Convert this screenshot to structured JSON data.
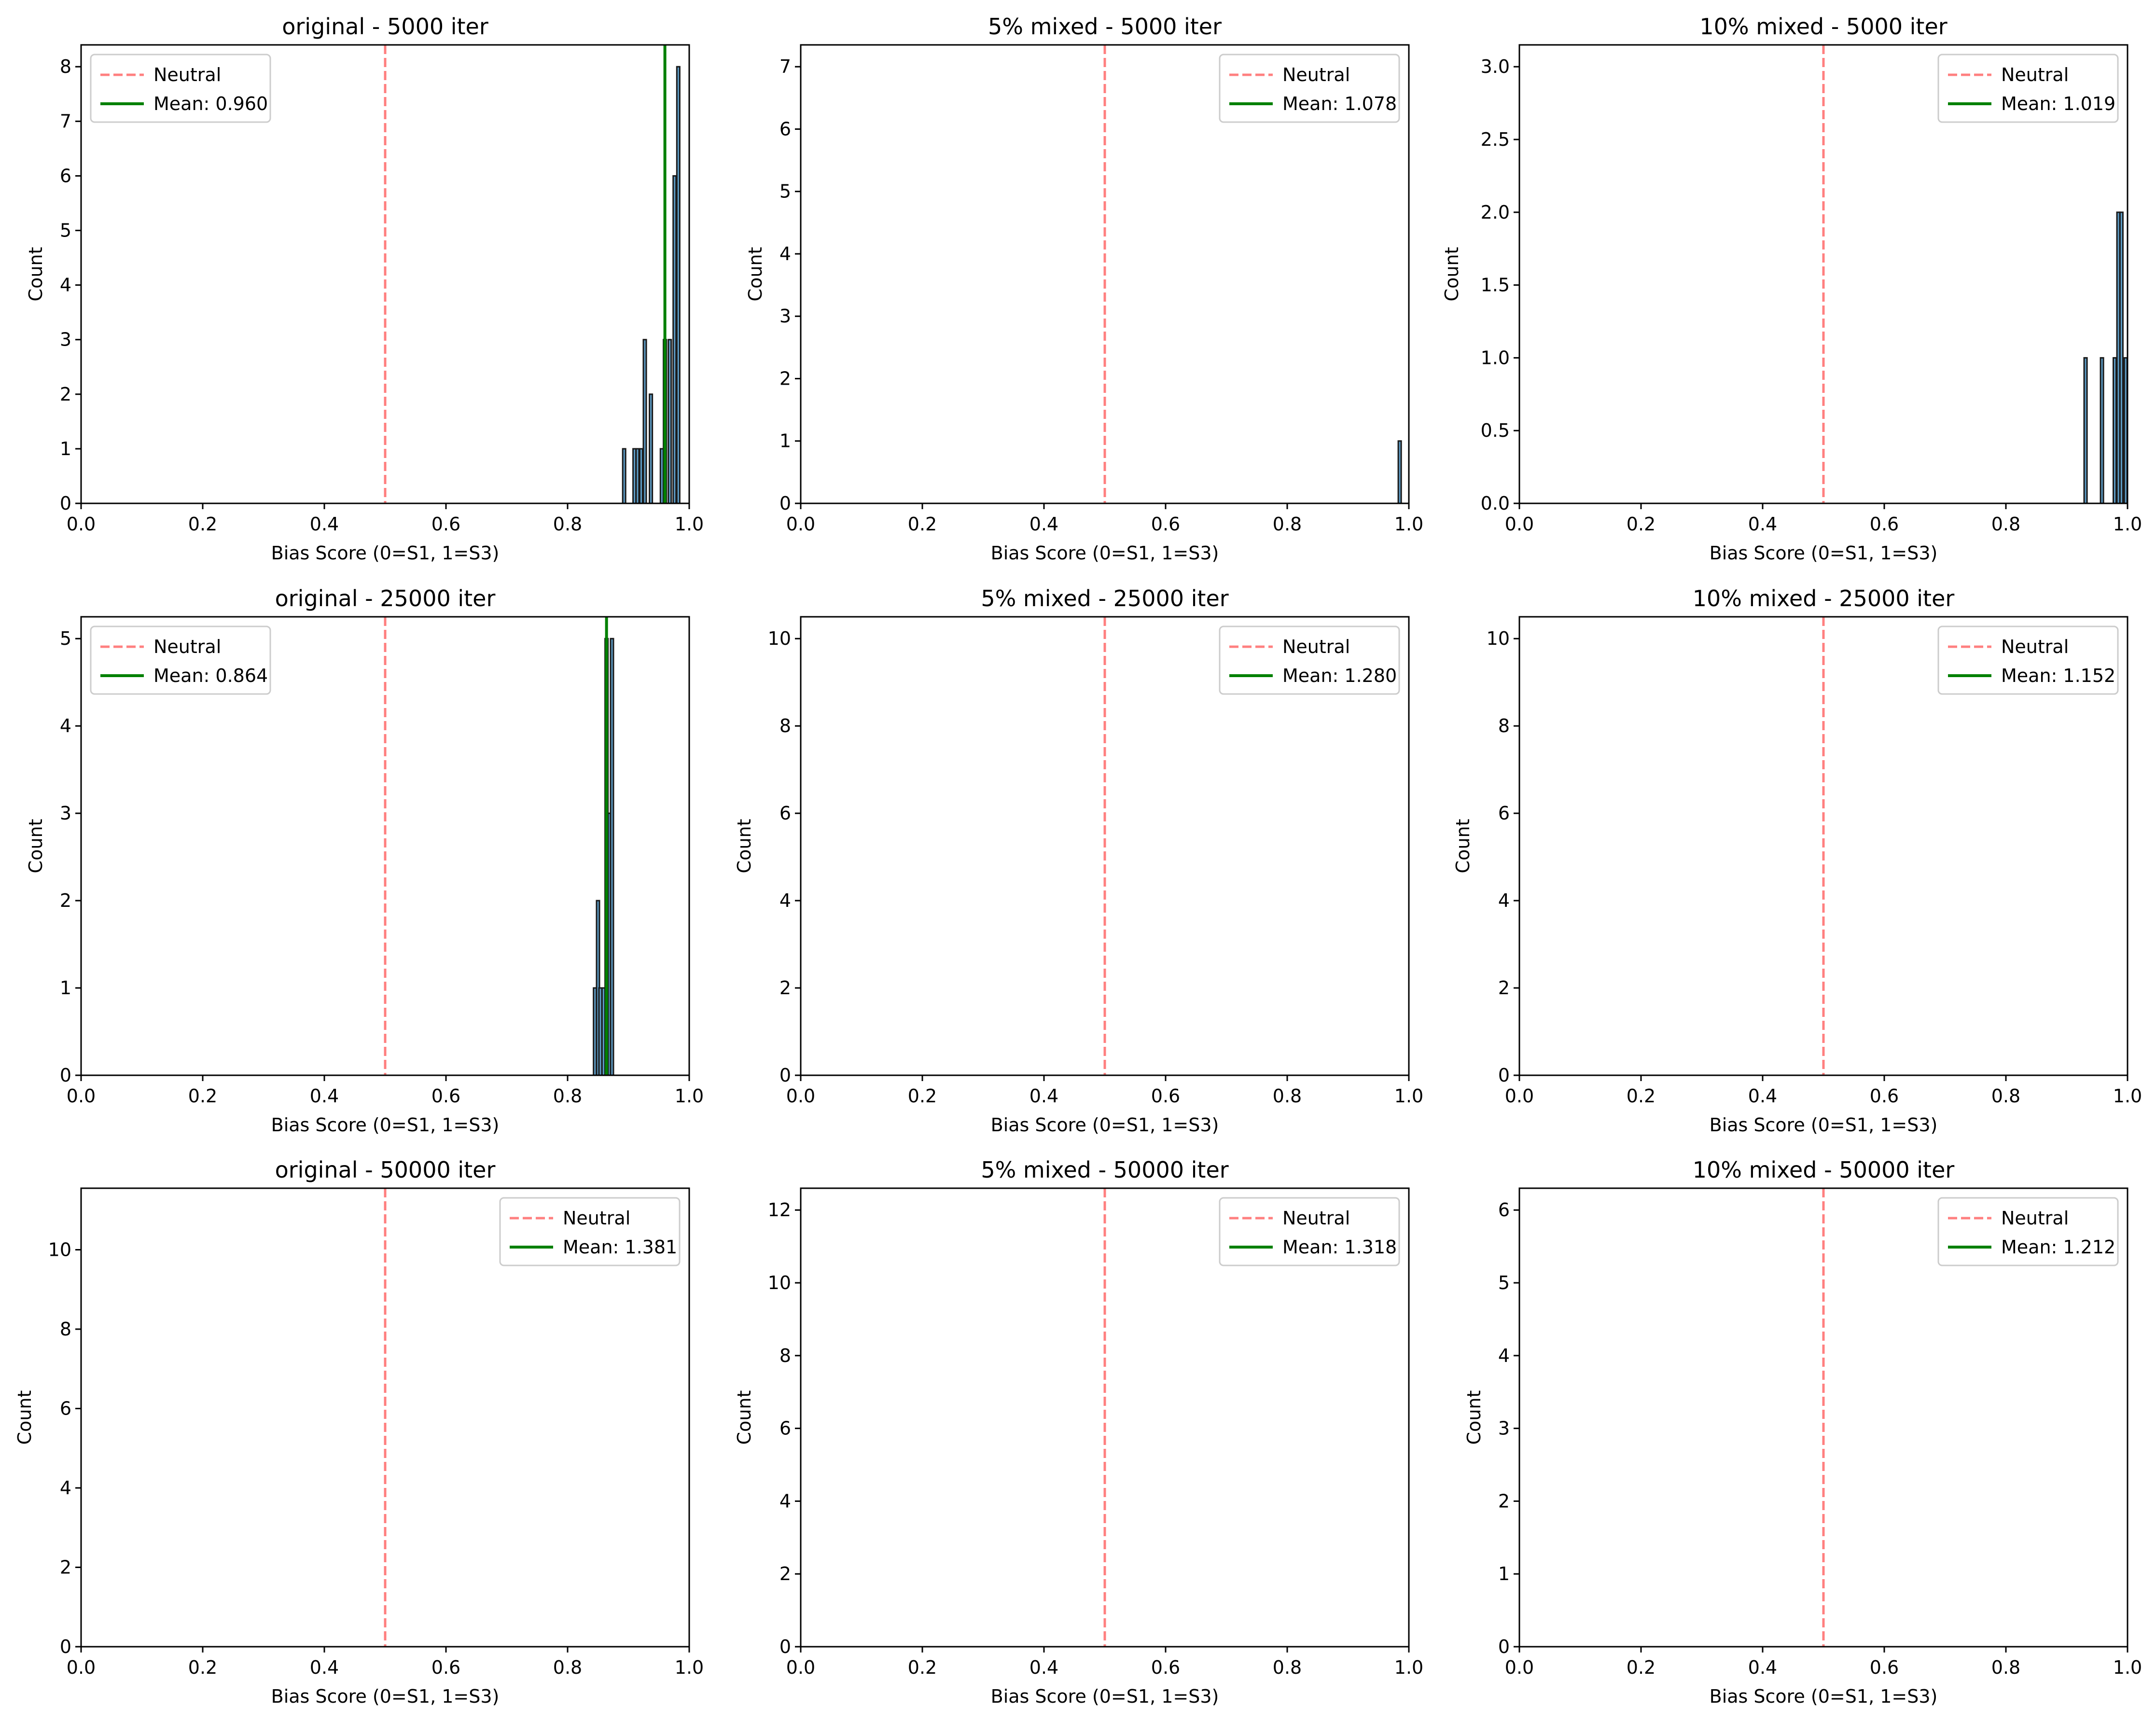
{
  "colors": {
    "neutral_line": "#ff7f7f",
    "mean_line": "#008000",
    "bar_fill": "#5d9cc6",
    "bar_edge": "#1a1a1a",
    "axis": "#000000"
  },
  "chart_data": [
    {
      "type": "bar",
      "title": "original - 5000 iter",
      "xlabel": "Bias Score (0=S1, 1=S3)",
      "ylabel": "Count",
      "xlim": [
        0,
        1
      ],
      "ylim": [
        0,
        8.4
      ],
      "xticks": [
        "0.0",
        "0.2",
        "0.4",
        "0.6",
        "0.8",
        "1.0"
      ],
      "yticks": [
        "0",
        "1",
        "2",
        "3",
        "4",
        "5",
        "6",
        "7",
        "8"
      ],
      "neutral": 0.5,
      "mean": 0.96,
      "legend_position": "upper left",
      "legend": [
        "Neutral",
        "Mean: 0.960"
      ],
      "bars": [
        {
          "x": 0.893,
          "count": 1
        },
        {
          "x": 0.91,
          "count": 1
        },
        {
          "x": 0.915,
          "count": 1
        },
        {
          "x": 0.921,
          "count": 1
        },
        {
          "x": 0.927,
          "count": 3
        },
        {
          "x": 0.937,
          "count": 2
        },
        {
          "x": 0.955,
          "count": 1
        },
        {
          "x": 0.96,
          "count": 3
        },
        {
          "x": 0.968,
          "count": 3
        },
        {
          "x": 0.976,
          "count": 6
        },
        {
          "x": 0.982,
          "count": 8
        }
      ]
    },
    {
      "type": "bar",
      "title": "5% mixed - 5000 iter",
      "xlabel": "Bias Score (0=S1, 1=S3)",
      "ylabel": "Count",
      "xlim": [
        0,
        1
      ],
      "ylim": [
        0,
        7.35
      ],
      "xticks": [
        "0.0",
        "0.2",
        "0.4",
        "0.6",
        "0.8",
        "1.0"
      ],
      "yticks": [
        "0",
        "1",
        "2",
        "3",
        "4",
        "5",
        "6",
        "7"
      ],
      "neutral": 0.5,
      "mean": 1.078,
      "legend_position": "upper right",
      "legend": [
        "Neutral",
        "Mean: 1.078"
      ],
      "bars": [
        {
          "x": 0.985,
          "count": 1
        }
      ]
    },
    {
      "type": "bar",
      "title": "10% mixed - 5000 iter",
      "xlabel": "Bias Score (0=S1, 1=S3)",
      "ylabel": "Count",
      "xlim": [
        0,
        1
      ],
      "ylim": [
        0,
        3.15
      ],
      "xticks": [
        "0.0",
        "0.2",
        "0.4",
        "0.6",
        "0.8",
        "1.0"
      ],
      "yticks": [
        "0.0",
        "0.5",
        "1.0",
        "1.5",
        "2.0",
        "2.5",
        "3.0"
      ],
      "neutral": 0.5,
      "mean": 1.019,
      "legend_position": "upper right",
      "legend": [
        "Neutral",
        "Mean: 1.019"
      ],
      "bars": [
        {
          "x": 0.931,
          "count": 1
        },
        {
          "x": 0.958,
          "count": 1
        },
        {
          "x": 0.979,
          "count": 1
        },
        {
          "x": 0.985,
          "count": 2
        },
        {
          "x": 0.99,
          "count": 2
        },
        {
          "x": 0.997,
          "count": 1
        }
      ]
    },
    {
      "type": "bar",
      "title": "original - 25000 iter",
      "xlabel": "Bias Score (0=S1, 1=S3)",
      "ylabel": "Count",
      "xlim": [
        0,
        1
      ],
      "ylim": [
        0,
        5.25
      ],
      "xticks": [
        "0.0",
        "0.2",
        "0.4",
        "0.6",
        "0.8",
        "1.0"
      ],
      "yticks": [
        "0",
        "1",
        "2",
        "3",
        "4",
        "5"
      ],
      "neutral": 0.5,
      "mean": 0.864,
      "legend_position": "upper left",
      "legend": [
        "Neutral",
        "Mean: 0.864"
      ],
      "bars": [
        {
          "x": 0.845,
          "count": 1
        },
        {
          "x": 0.85,
          "count": 2
        },
        {
          "x": 0.854,
          "count": 1
        },
        {
          "x": 0.859,
          "count": 1
        },
        {
          "x": 0.864,
          "count": 5
        },
        {
          "x": 0.869,
          "count": 3
        },
        {
          "x": 0.873,
          "count": 5
        }
      ]
    },
    {
      "type": "bar",
      "title": "5% mixed - 25000 iter",
      "xlabel": "Bias Score (0=S1, 1=S3)",
      "ylabel": "Count",
      "xlim": [
        0,
        1
      ],
      "ylim": [
        0,
        10.5
      ],
      "xticks": [
        "0.0",
        "0.2",
        "0.4",
        "0.6",
        "0.8",
        "1.0"
      ],
      "yticks": [
        "0",
        "2",
        "4",
        "6",
        "8",
        "10"
      ],
      "neutral": 0.5,
      "mean": 1.28,
      "legend_position": "upper right",
      "legend": [
        "Neutral",
        "Mean: 1.280"
      ],
      "bars": []
    },
    {
      "type": "bar",
      "title": "10% mixed - 25000 iter",
      "xlabel": "Bias Score (0=S1, 1=S3)",
      "ylabel": "Count",
      "xlim": [
        0,
        1
      ],
      "ylim": [
        0,
        10.5
      ],
      "xticks": [
        "0.0",
        "0.2",
        "0.4",
        "0.6",
        "0.8",
        "1.0"
      ],
      "yticks": [
        "0",
        "2",
        "4",
        "6",
        "8",
        "10"
      ],
      "neutral": 0.5,
      "mean": 1.152,
      "legend_position": "upper right",
      "legend": [
        "Neutral",
        "Mean: 1.152"
      ],
      "bars": []
    },
    {
      "type": "bar",
      "title": "original - 50000 iter",
      "xlabel": "Bias Score (0=S1, 1=S3)",
      "ylabel": "Count",
      "xlim": [
        0,
        1
      ],
      "ylim": [
        0,
        11.55
      ],
      "xticks": [
        "0.0",
        "0.2",
        "0.4",
        "0.6",
        "0.8",
        "1.0"
      ],
      "yticks": [
        "0",
        "2",
        "4",
        "6",
        "8",
        "10"
      ],
      "neutral": 0.5,
      "mean": 1.381,
      "legend_position": "upper right",
      "legend": [
        "Neutral",
        "Mean: 1.381"
      ],
      "bars": []
    },
    {
      "type": "bar",
      "title": "5% mixed - 50000 iter",
      "xlabel": "Bias Score (0=S1, 1=S3)",
      "ylabel": "Count",
      "xlim": [
        0,
        1
      ],
      "ylim": [
        0,
        12.6
      ],
      "xticks": [
        "0.0",
        "0.2",
        "0.4",
        "0.6",
        "0.8",
        "1.0"
      ],
      "yticks": [
        "0",
        "2",
        "4",
        "6",
        "8",
        "10",
        "12"
      ],
      "neutral": 0.5,
      "mean": 1.318,
      "legend_position": "upper right",
      "legend": [
        "Neutral",
        "Mean: 1.318"
      ],
      "bars": []
    },
    {
      "type": "bar",
      "title": "10% mixed - 50000 iter",
      "xlabel": "Bias Score (0=S1, 1=S3)",
      "ylabel": "Count",
      "xlim": [
        0,
        1
      ],
      "ylim": [
        0,
        6.3
      ],
      "xticks": [
        "0.0",
        "0.2",
        "0.4",
        "0.6",
        "0.8",
        "1.0"
      ],
      "yticks": [
        "0",
        "1",
        "2",
        "3",
        "4",
        "5",
        "6"
      ],
      "neutral": 0.5,
      "mean": 1.212,
      "legend_position": "upper right",
      "legend": [
        "Neutral",
        "Mean: 1.212"
      ],
      "bars": []
    }
  ]
}
